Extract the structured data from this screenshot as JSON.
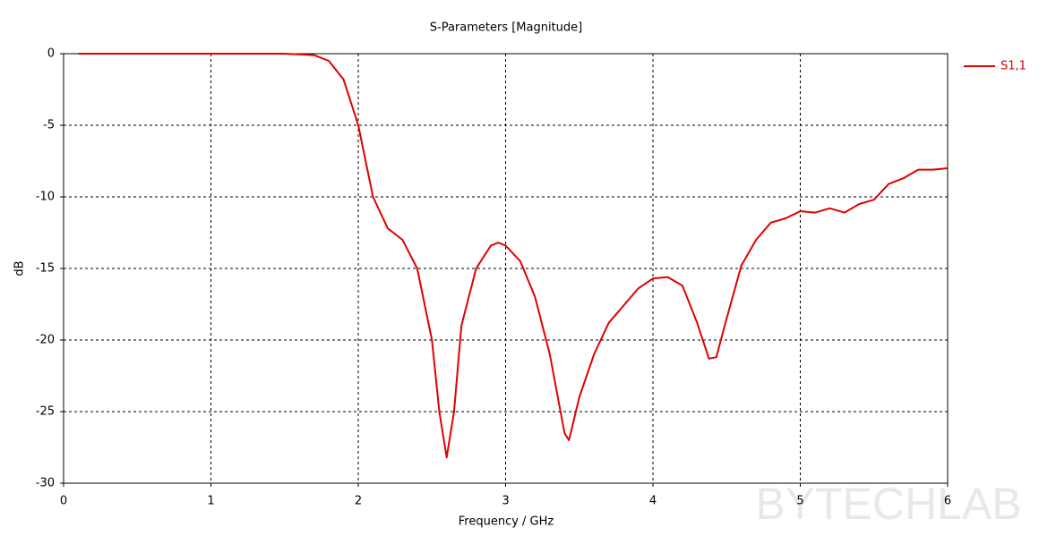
{
  "chart_data": {
    "type": "line",
    "title": "S-Parameters [Magnitude]",
    "x_label": "Frequency / GHz",
    "y_label": "dB",
    "watermark": "BYTECHLAB",
    "x": [
      0.1,
      1.5,
      1.7,
      1.8,
      1.9,
      2.0,
      2.1,
      2.2,
      2.3,
      2.4,
      2.5,
      2.55,
      2.6,
      2.65,
      2.7,
      2.8,
      2.9,
      2.95,
      3.0,
      3.1,
      3.2,
      3.3,
      3.4,
      3.43,
      3.5,
      3.6,
      3.7,
      3.8,
      3.9,
      4.0,
      4.1,
      4.2,
      4.3,
      4.38,
      4.43,
      4.5,
      4.6,
      4.7,
      4.8,
      4.9,
      5.0,
      5.1,
      5.2,
      5.3,
      5.4,
      5.5,
      5.6,
      5.7,
      5.8,
      5.9,
      6.0
    ],
    "series": [
      {
        "name": "S1,1",
        "color": "#e00000",
        "values": [
          0,
          0,
          -0.1,
          -0.5,
          -1.8,
          -5,
          -10,
          -12.2,
          -13,
          -15,
          -20,
          -25,
          -28.2,
          -25,
          -19,
          -15,
          -13.4,
          -13.2,
          -13.4,
          -14.5,
          -17,
          -21,
          -26.5,
          -27,
          -24,
          -21,
          -18.8,
          -17.6,
          -16.4,
          -15.7,
          -15.6,
          -16.2,
          -18.8,
          -21.3,
          -21.2,
          -18.5,
          -14.8,
          -13,
          -11.8,
          -11.5,
          -11,
          -11.1,
          -10.8,
          -11.1,
          -10.5,
          -10.2,
          -9.1,
          -8.7,
          -8.1,
          -8.1,
          -8.0
        ]
      }
    ],
    "xlim": [
      0,
      6
    ],
    "xticks": [
      0,
      1,
      2,
      3,
      4,
      5,
      6
    ],
    "ylim": [
      -30,
      0
    ],
    "yticks": [
      0,
      -5,
      -10,
      -15,
      -20,
      -25,
      -30
    ],
    "grid": true
  }
}
